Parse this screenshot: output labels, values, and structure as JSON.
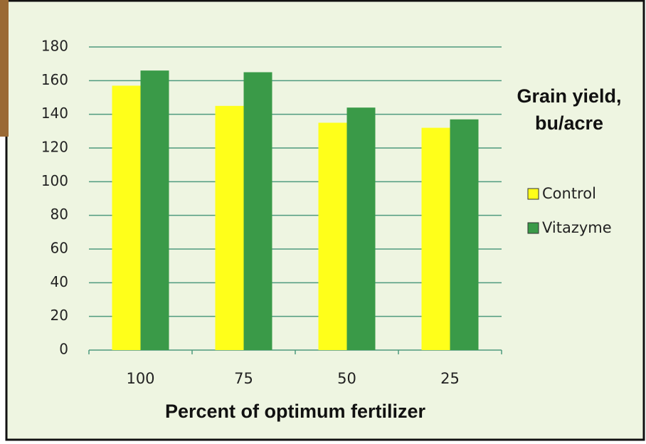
{
  "chart_data": {
    "type": "bar",
    "y_label": "Grain yield, bu/acre",
    "x_label": "Percent of optimum fertilizer",
    "categories": [
      "100",
      "75",
      "50",
      "25"
    ],
    "series": [
      {
        "name": "Control",
        "color": "#ffff1a",
        "values": [
          157,
          145,
          135,
          132
        ]
      },
      {
        "name": "Vitazyme",
        "color": "#3a9a48",
        "values": [
          166,
          165,
          144,
          137
        ]
      }
    ],
    "ylim": [
      0,
      180
    ],
    "yticks": [
      0,
      20,
      40,
      60,
      80,
      100,
      120,
      140,
      160,
      180
    ],
    "grid": true
  }
}
